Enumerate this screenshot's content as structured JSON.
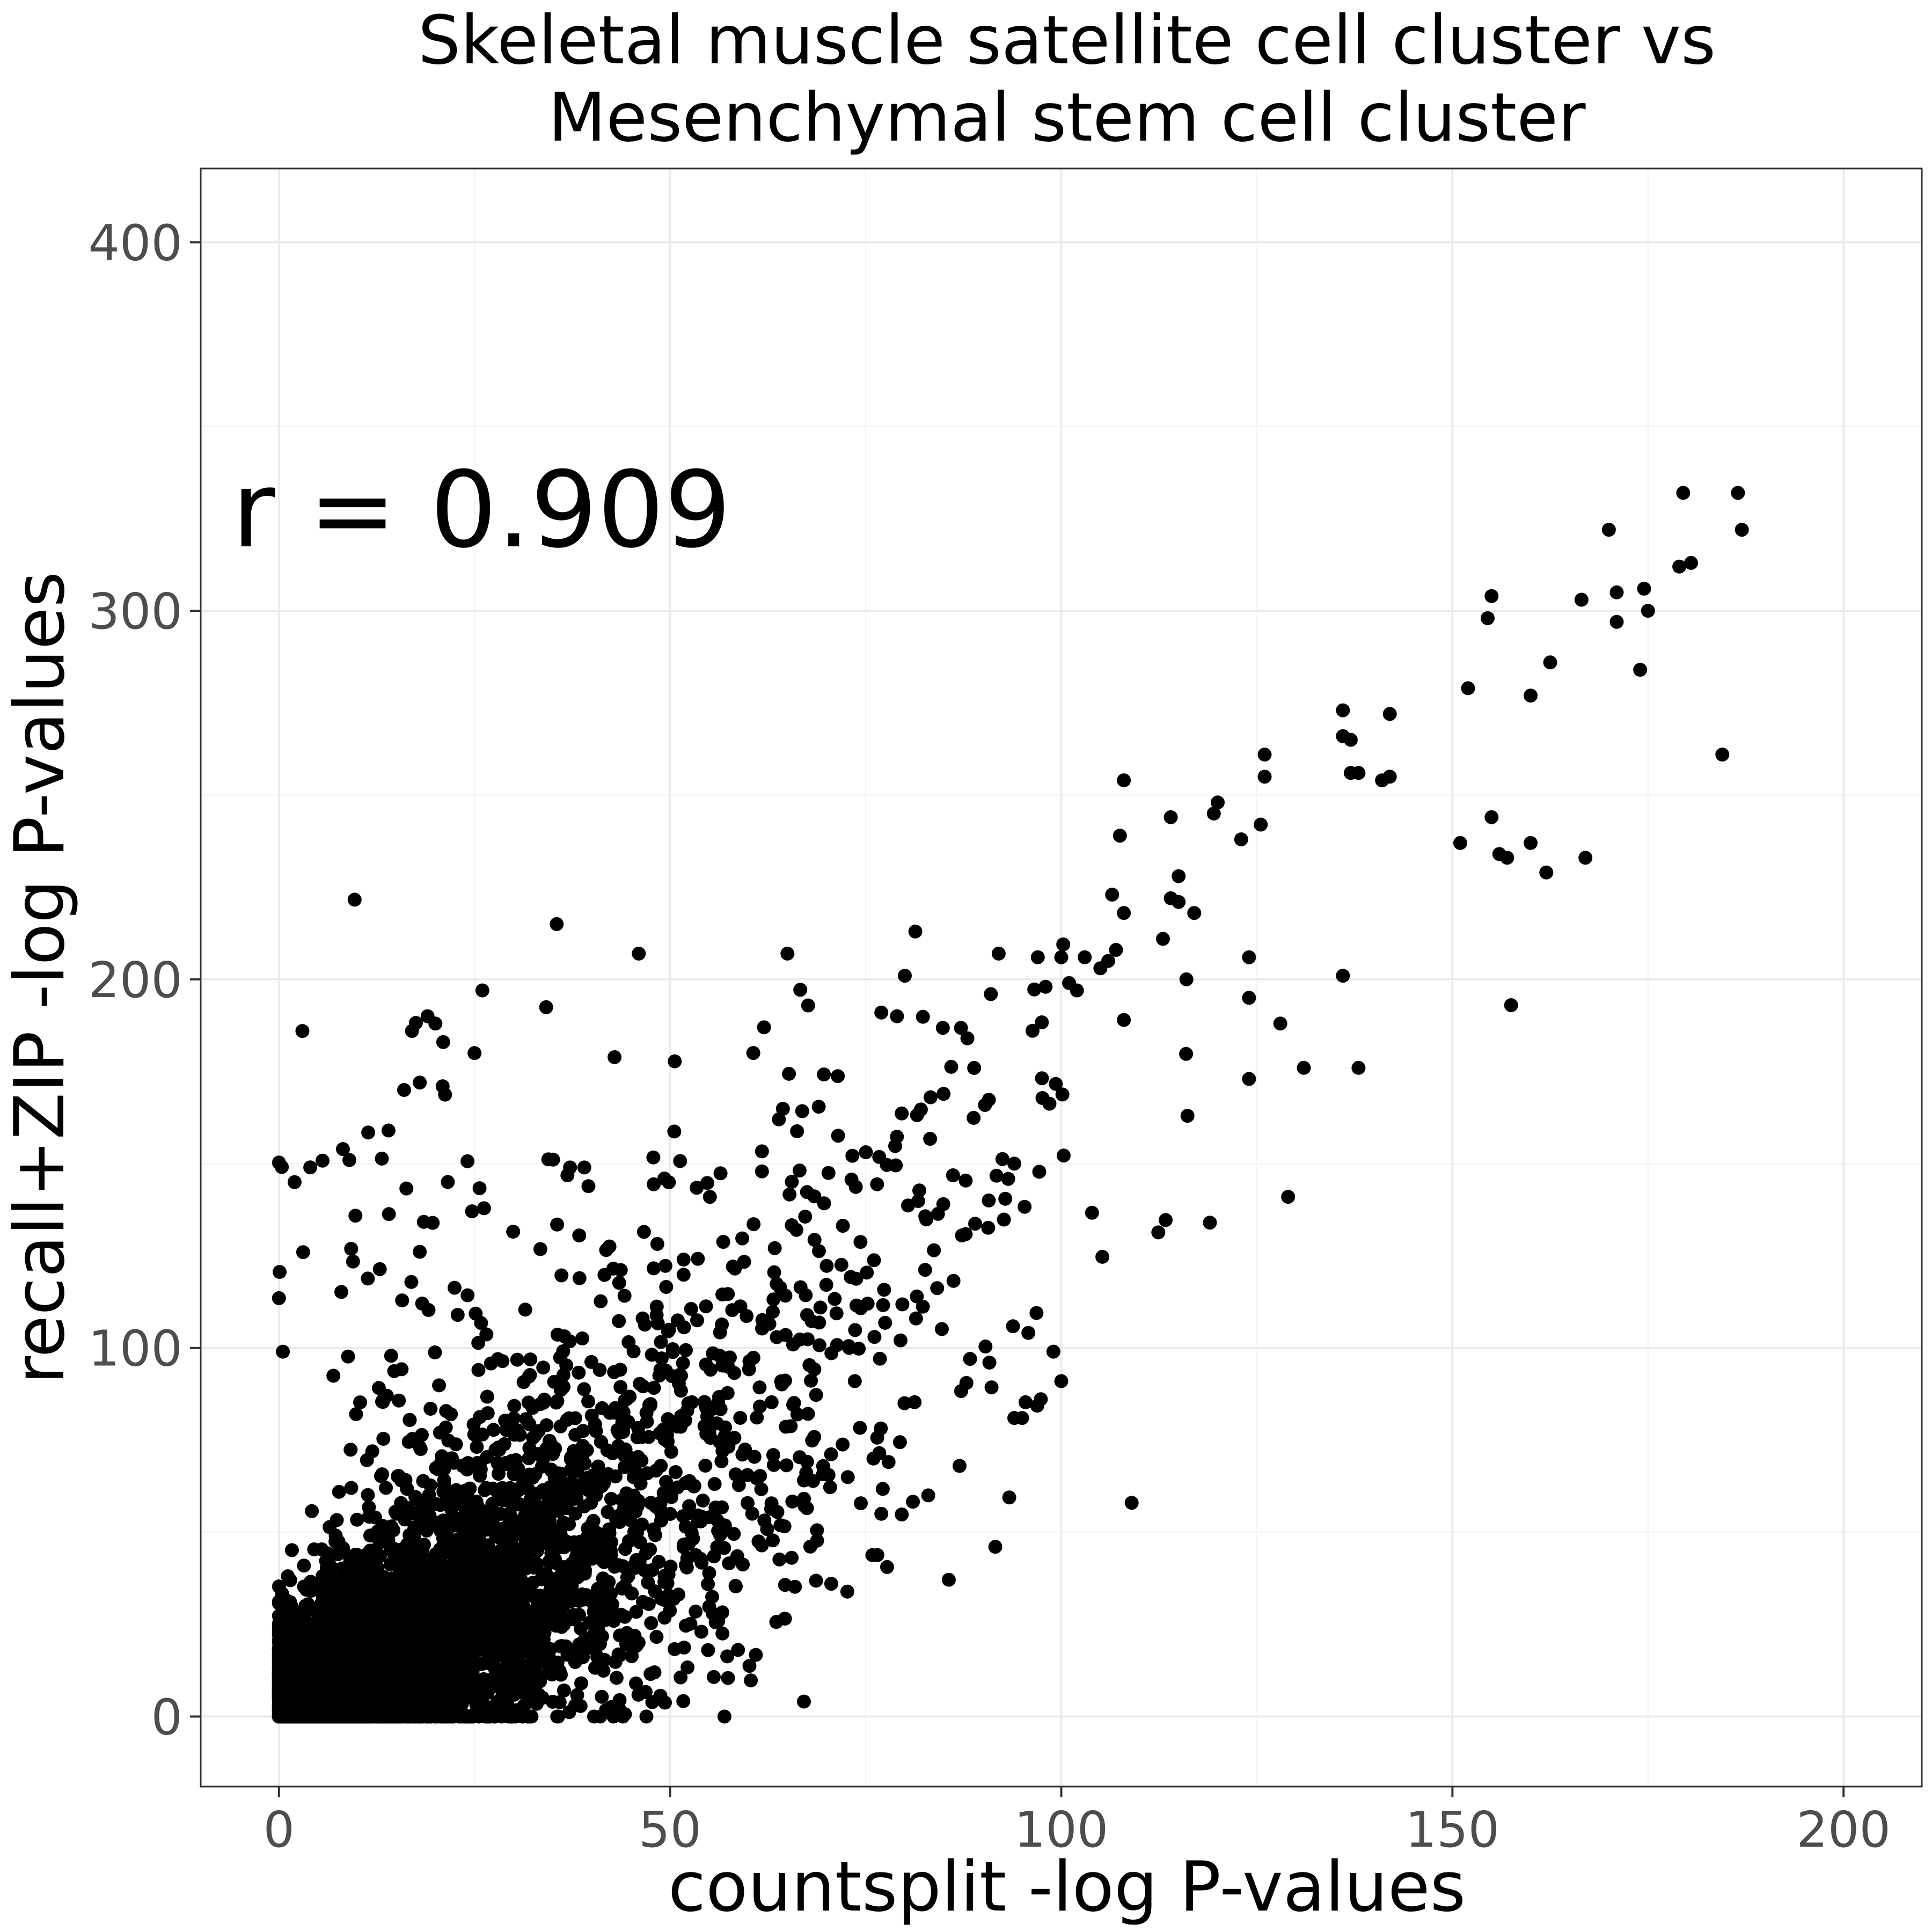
{
  "chart_data": {
    "type": "scatter",
    "title_lines": [
      "Skeletal muscle satellite cell cluster vs",
      "Mesenchymal stem cell cluster"
    ],
    "xlabel": "countsplit -log P-values",
    "ylabel": "recall+ZIP -log P-values",
    "annotation": "r = 0.909",
    "xlim": [
      -10,
      210
    ],
    "ylim": [
      -19,
      420
    ],
    "x_ticks": [
      0,
      50,
      100,
      150,
      200
    ],
    "y_ticks": [
      0,
      100,
      200,
      300,
      400
    ],
    "x_tick_labels": [
      "0",
      "50",
      "100",
      "150",
      "200"
    ],
    "y_tick_labels": [
      "0",
      "100",
      "200",
      "300",
      "400"
    ],
    "grid": true,
    "point_color": "#000000",
    "highlighted_points": [
      [
        186.5,
        332
      ],
      [
        179.5,
        332
      ],
      [
        187,
        322
      ],
      [
        180.5,
        313
      ],
      [
        179,
        312
      ],
      [
        170,
        322
      ],
      [
        174.5,
        306
      ],
      [
        171,
        305
      ],
      [
        175,
        300
      ],
      [
        171,
        297
      ],
      [
        155,
        304
      ],
      [
        154.5,
        298
      ],
      [
        166.5,
        303
      ],
      [
        174,
        284
      ],
      [
        162.5,
        286
      ],
      [
        160,
        277
      ],
      [
        152,
        279
      ],
      [
        184.5,
        261
      ],
      [
        155,
        244
      ],
      [
        156,
        234
      ],
      [
        157,
        233
      ],
      [
        160,
        237
      ],
      [
        162,
        229
      ],
      [
        167,
        233
      ],
      [
        151,
        237
      ],
      [
        157.5,
        193
      ],
      [
        142,
        272
      ],
      [
        136,
        273
      ],
      [
        136,
        266
      ],
      [
        137,
        265
      ],
      [
        137,
        256
      ],
      [
        138,
        256
      ],
      [
        141,
        254
      ],
      [
        142,
        255
      ],
      [
        126,
        261
      ],
      [
        126,
        255
      ],
      [
        125.5,
        242
      ],
      [
        123,
        238
      ],
      [
        120,
        248
      ],
      [
        119.5,
        245
      ],
      [
        117,
        218
      ],
      [
        114,
        244
      ],
      [
        115,
        221
      ],
      [
        114,
        222
      ],
      [
        116,
        200
      ],
      [
        113,
        211
      ],
      [
        115,
        228
      ],
      [
        108,
        254
      ],
      [
        107.5,
        239
      ],
      [
        106.5,
        223
      ],
      [
        108,
        218
      ],
      [
        107,
        208
      ],
      [
        106,
        205
      ],
      [
        105,
        203
      ],
      [
        108,
        189
      ],
      [
        103,
        206
      ],
      [
        100,
        206
      ],
      [
        101,
        199
      ],
      [
        102,
        197
      ],
      [
        98,
        198
      ],
      [
        97,
        206
      ],
      [
        92,
        207
      ],
      [
        91,
        196
      ],
      [
        88,
        184
      ],
      [
        80,
        201
      ],
      [
        79,
        190
      ],
      [
        77,
        191
      ],
      [
        62,
        187
      ],
      [
        65,
        207
      ],
      [
        46,
        207
      ],
      [
        35.5,
        215
      ],
      [
        3,
        186
      ],
      [
        26,
        197
      ],
      [
        20,
        188
      ],
      [
        19,
        190
      ],
      [
        21,
        183
      ],
      [
        25,
        180
      ],
      [
        17,
        186
      ],
      [
        18,
        172
      ],
      [
        16,
        170
      ],
      [
        14,
        159
      ],
      [
        4,
        149
      ],
      [
        2,
        145
      ],
      [
        0.5,
        99
      ],
      [
        9,
        151
      ],
      [
        129,
        141
      ],
      [
        119,
        134
      ],
      [
        136,
        201
      ],
      [
        138,
        176
      ],
      [
        131,
        176
      ],
      [
        124,
        206
      ],
      [
        124,
        195
      ],
      [
        128,
        188
      ],
      [
        124,
        173
      ],
      [
        109,
        58
      ],
      [
        99,
        99
      ],
      [
        100,
        91
      ],
      [
        95,
        81
      ],
      [
        94,
        81
      ],
      [
        94,
        150
      ],
      [
        87,
        68
      ],
      [
        76,
        70
      ],
      [
        83,
        60
      ],
      [
        77,
        55
      ],
      [
        54,
        23
      ],
      [
        48,
        12
      ],
      [
        35,
        4
      ]
    ],
    "cluster_regions": [
      {
        "x_center": 4,
        "y_center": 8,
        "x_spread": 4,
        "y_spread": 8,
        "count": 2200
      },
      {
        "x_center": 14,
        "y_center": 18,
        "x_spread": 8,
        "y_spread": 13,
        "count": 1600
      },
      {
        "x_center": 26,
        "y_center": 34,
        "x_spread": 11,
        "y_spread": 18,
        "count": 900
      },
      {
        "x_center": 40,
        "y_center": 58,
        "x_spread": 14,
        "y_spread": 26,
        "count": 450
      },
      {
        "x_center": 58,
        "y_center": 92,
        "x_spread": 16,
        "y_spread": 32,
        "count": 230
      },
      {
        "x_center": 80,
        "y_center": 140,
        "x_spread": 16,
        "y_spread": 30,
        "count": 110
      },
      {
        "x_center": 20,
        "y_center": 110,
        "x_spread": 14,
        "y_spread": 35,
        "count": 90
      }
    ]
  }
}
